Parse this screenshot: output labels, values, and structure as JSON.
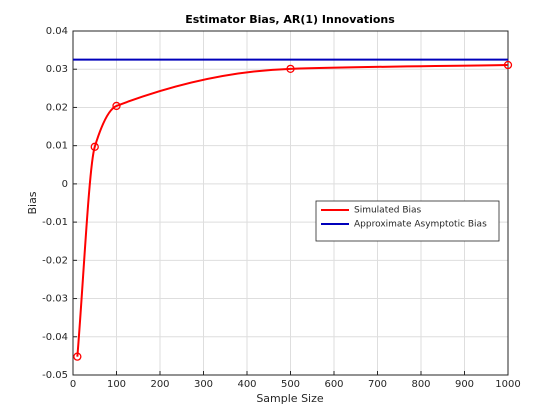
{
  "chart_data": {
    "type": "line",
    "title": "Estimator Bias, AR(1) Innovations",
    "xlabel": "Sample Size",
    "ylabel": "Bias",
    "series": [
      {
        "name": "Simulated Bias",
        "color": "#ff0000",
        "marker": "circle",
        "x": [
          10,
          50,
          100,
          500,
          1000
        ],
        "values": [
          -0.0452,
          0.0097,
          0.0204,
          0.0301,
          0.0311
        ]
      },
      {
        "name": "Approximate Asymptotic Bias",
        "color": "#0000bb",
        "x": [
          0,
          1000
        ],
        "values": [
          0.0325,
          0.0325
        ]
      }
    ],
    "xlim": [
      0,
      1000
    ],
    "xticks": [
      0,
      100,
      200,
      300,
      400,
      500,
      600,
      700,
      800,
      900,
      1000
    ],
    "ylim": [
      -0.05,
      0.04
    ],
    "yticks": [
      -0.05,
      -0.04,
      -0.03,
      -0.02,
      -0.01,
      0,
      0.01,
      0.02,
      0.03,
      0.04
    ],
    "grid": true,
    "legend_location": "east"
  }
}
